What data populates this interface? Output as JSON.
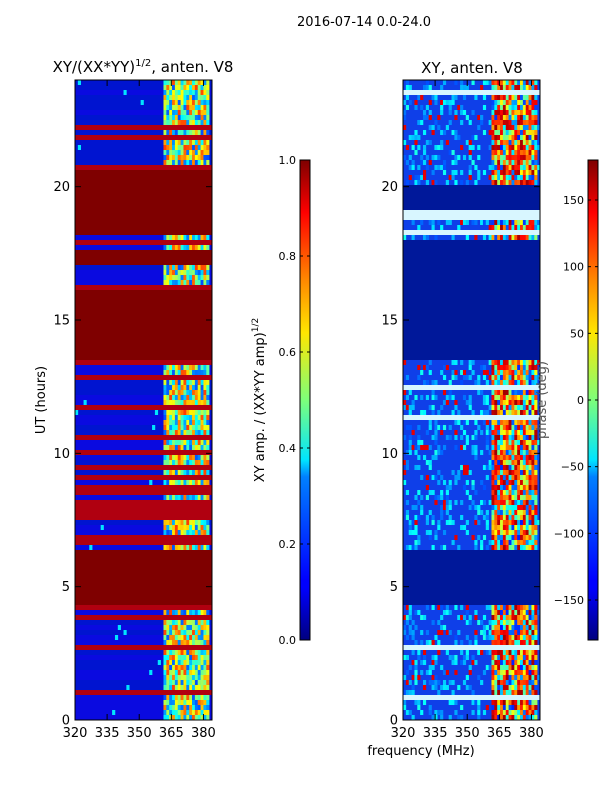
{
  "suptitle": "2016-07-14 0.0-24.0",
  "chart_data": [
    {
      "type": "heatmap",
      "title": "XY/(XX*YY)^1/2, anten. V8",
      "title_parts": {
        "base": "XY/(XX*YY)",
        "exponent": "1/2",
        "suffix": ", anten. V8"
      },
      "ylabel": "UT (hours)",
      "xlabel": "",
      "xlim": [
        320,
        384
      ],
      "ylim": [
        0,
        24
      ],
      "xticks": [
        320,
        335,
        350,
        365,
        380
      ],
      "yticks": [
        0,
        5,
        10,
        15,
        20
      ],
      "high_activity_band_mhz": [
        361,
        382
      ],
      "saturated_hour_ranges": [
        [
          4.35,
          6.45
        ],
        [
          13.55,
          16.05
        ],
        [
          16.25,
          16.4
        ],
        [
          17.05,
          17.55
        ],
        [
          18.2,
          20.05
        ],
        [
          20.15,
          20.55
        ]
      ],
      "colorbar": {
        "label_base": "XY amp. / (XX*YY amp)",
        "label_exponent": "1/2",
        "range": [
          0.0,
          1.0
        ],
        "ticks": [
          "0.0",
          "0.2",
          "0.4",
          "0.6",
          "0.8",
          "1.0"
        ],
        "colormap": "jet"
      }
    },
    {
      "type": "heatmap",
      "title": "XY, anten. V8",
      "ylabel": "",
      "xlabel": "frequency (MHz)",
      "xlim": [
        320,
        384
      ],
      "ylim": [
        0,
        24
      ],
      "xticks": [
        320,
        335,
        350,
        365,
        380
      ],
      "yticks": [
        0,
        5,
        10,
        15,
        20
      ],
      "high_activity_band_mhz": [
        362,
        382
      ],
      "low_phase_hour_ranges": [
        [
          4.35,
          6.45
        ],
        [
          13.55,
          18.0
        ],
        [
          19.05,
          20.05
        ]
      ],
      "colorbar": {
        "label": "phase (deg)",
        "range": [
          -180,
          180
        ],
        "ticks": [
          "150",
          "100",
          "50",
          "0",
          "−50",
          "−100",
          "−150"
        ],
        "colormap": "jet"
      }
    }
  ]
}
